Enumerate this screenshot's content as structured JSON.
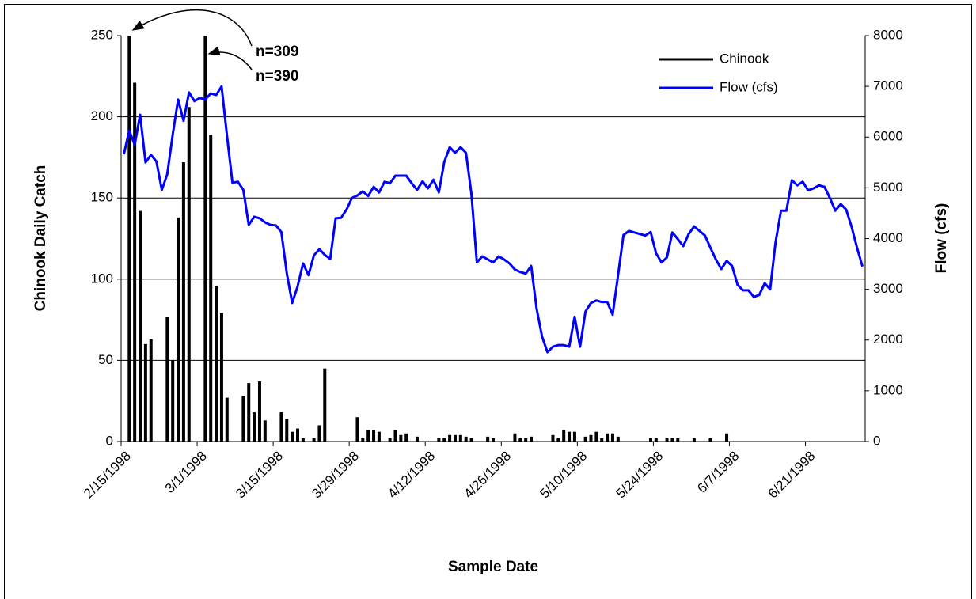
{
  "chart_data": {
    "type": "bar",
    "x": [
      "2/15/1998",
      "2/16/1998",
      "2/17/1998",
      "2/18/1998",
      "2/19/1998",
      "2/20/1998",
      "2/21/1998",
      "2/22/1998",
      "2/23/1998",
      "2/24/1998",
      "2/25/1998",
      "2/26/1998",
      "2/27/1998",
      "2/28/1998",
      "3/1/1998",
      "3/2/1998",
      "3/3/1998",
      "3/4/1998",
      "3/5/1998",
      "3/6/1998",
      "3/7/1998",
      "3/8/1998",
      "3/9/1998",
      "3/10/1998",
      "3/11/1998",
      "3/12/1998",
      "3/13/1998",
      "3/14/1998",
      "3/15/1998",
      "3/16/1998",
      "3/17/1998",
      "3/18/1998",
      "3/19/1998",
      "3/20/1998",
      "3/21/1998",
      "3/22/1998",
      "3/23/1998",
      "3/24/1998",
      "3/25/1998",
      "3/26/1998",
      "3/27/1998",
      "3/28/1998",
      "3/29/1998",
      "3/30/1998",
      "3/31/1998",
      "4/1/1998",
      "4/2/1998",
      "4/3/1998",
      "4/4/1998",
      "4/5/1998",
      "4/6/1998",
      "4/7/1998",
      "4/8/1998",
      "4/9/1998",
      "4/10/1998",
      "4/11/1998",
      "4/12/1998",
      "4/13/1998",
      "4/14/1998",
      "4/15/1998",
      "4/16/1998",
      "4/17/1998",
      "4/18/1998",
      "4/19/1998",
      "4/20/1998",
      "4/21/1998",
      "4/22/1998",
      "4/23/1998",
      "4/24/1998",
      "4/25/1998",
      "4/26/1998",
      "4/27/1998",
      "4/28/1998",
      "4/29/1998",
      "4/30/1998",
      "5/1/1998",
      "5/2/1998",
      "5/3/1998",
      "5/4/1998",
      "5/5/1998",
      "5/6/1998",
      "5/7/1998",
      "5/8/1998",
      "5/9/1998",
      "5/10/1998",
      "5/11/1998",
      "5/12/1998",
      "5/13/1998",
      "5/14/1998",
      "5/15/1998",
      "5/16/1998",
      "5/17/1998",
      "5/18/1998",
      "5/19/1998",
      "5/20/1998",
      "5/21/1998",
      "5/22/1998",
      "5/23/1998",
      "5/24/1998",
      "5/25/1998",
      "5/26/1998",
      "5/27/1998",
      "5/28/1998",
      "5/29/1998",
      "5/30/1998",
      "5/31/1998",
      "6/1/1998",
      "6/2/1998",
      "6/3/1998",
      "6/4/1998",
      "6/5/1998",
      "6/6/1998",
      "6/7/1998",
      "6/8/1998",
      "6/9/1998",
      "6/10/1998",
      "6/11/1998",
      "6/12/1998",
      "6/13/1998",
      "6/14/1998",
      "6/15/1998",
      "6/16/1998",
      "6/17/1998",
      "6/18/1998",
      "6/19/1998",
      "6/20/1998",
      "6/21/1998",
      "6/22/1998",
      "6/23/1998",
      "6/24/1998",
      "6/25/1998",
      "6/26/1998",
      "6/27/1998",
      "6/28/1998",
      "6/29/1998",
      "6/30/1998",
      "7/1/1998"
    ],
    "series": [
      {
        "name": "Chinook",
        "type": "bar",
        "color": "#000000",
        "values": [
          null,
          309,
          221,
          142,
          60,
          63,
          null,
          null,
          77,
          50,
          138,
          172,
          206,
          null,
          null,
          390,
          189,
          96,
          79,
          27,
          null,
          null,
          28,
          36,
          18,
          37,
          13,
          null,
          null,
          18,
          14,
          6,
          8,
          2,
          null,
          2,
          10,
          45,
          null,
          null,
          null,
          null,
          null,
          15,
          2,
          7,
          7,
          6,
          null,
          2,
          7,
          4,
          5,
          null,
          3,
          null,
          null,
          null,
          2,
          2,
          4,
          4,
          4,
          3,
          2,
          null,
          null,
          3,
          2,
          null,
          null,
          null,
          5,
          2,
          2,
          3,
          null,
          null,
          null,
          4,
          2,
          7,
          6,
          6,
          null,
          3,
          4,
          6,
          2,
          5,
          5,
          3,
          null,
          null,
          null,
          null,
          null,
          2,
          2,
          null,
          2,
          2,
          2,
          null,
          null,
          2,
          null,
          null,
          2,
          null,
          null,
          5,
          null,
          null,
          null,
          null,
          null,
          null,
          null,
          null,
          null,
          null,
          null,
          null,
          null,
          null,
          null,
          null,
          null,
          null,
          null,
          null,
          null,
          null,
          null,
          null,
          null
        ]
      },
      {
        "name": "Flow (cfs)",
        "type": "line",
        "axis": "y2",
        "color": "#0000ff",
        "values": [
          5660,
          6130,
          5850,
          6440,
          5500,
          5650,
          5520,
          4960,
          5270,
          6050,
          6740,
          6320,
          6880,
          6710,
          6770,
          6740,
          6860,
          6830,
          7000,
          6020,
          5100,
          5120,
          4960,
          4270,
          4430,
          4400,
          4320,
          4270,
          4260,
          4130,
          3320,
          2730,
          3060,
          3510,
          3280,
          3670,
          3790,
          3680,
          3600,
          4400,
          4410,
          4570,
          4800,
          4850,
          4930,
          4840,
          5020,
          4910,
          5120,
          5090,
          5240,
          5240,
          5240,
          5090,
          4960,
          5130,
          4990,
          5160,
          4910,
          5510,
          5800,
          5690,
          5800,
          5690,
          4880,
          3530,
          3650,
          3590,
          3530,
          3650,
          3590,
          3510,
          3390,
          3340,
          3310,
          3460,
          2620,
          2070,
          1760,
          1870,
          1900,
          1900,
          1870,
          2460,
          1870,
          2560,
          2730,
          2780,
          2750,
          2750,
          2500,
          3280,
          4070,
          4150,
          4120,
          4090,
          4060,
          4130,
          3710,
          3530,
          3630,
          4120,
          3990,
          3850,
          4090,
          4240,
          4150,
          4060,
          3820,
          3590,
          3400,
          3560,
          3460,
          3090,
          2980,
          2980,
          2850,
          2890,
          3120,
          3000,
          3930,
          4550,
          4550,
          5150,
          5050,
          5120,
          4950,
          4990,
          5050,
          5020,
          4800,
          4550,
          4680,
          4570,
          4230,
          3820,
          3450
        ]
      }
    ],
    "xlabel": "Sample Date",
    "ylabel": "Chinook Daily Catch",
    "y2label": "Flow (cfs)",
    "xlim": [
      "2/15/1998",
      "7/2/1998"
    ],
    "xticks": [
      "2/15/1998",
      "3/1/1998",
      "3/15/1998",
      "3/29/1998",
      "4/12/1998",
      "4/26/1998",
      "5/10/1998",
      "5/24/1998",
      "6/7/1998",
      "6/21/1998"
    ],
    "ylim": [
      0,
      250
    ],
    "yticks": [
      0,
      50,
      100,
      150,
      200,
      250
    ],
    "y2lim": [
      0,
      8000
    ],
    "y2ticks": [
      0,
      1000,
      2000,
      3000,
      4000,
      5000,
      6000,
      7000,
      8000
    ],
    "grid": true,
    "legend": "upper right",
    "annotations": [
      "n=309",
      "n=390"
    ]
  }
}
